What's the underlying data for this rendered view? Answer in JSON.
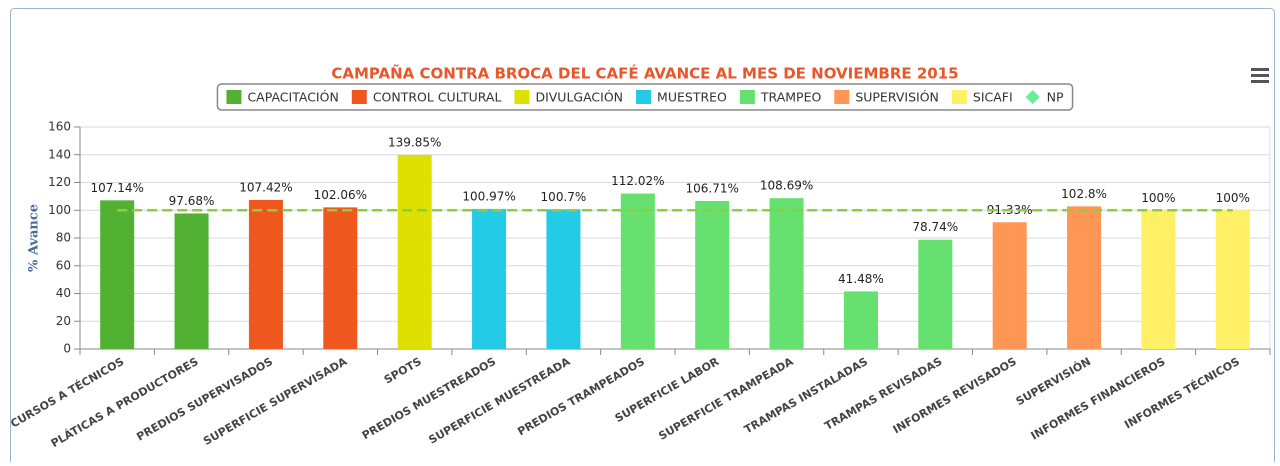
{
  "chart_data": {
    "type": "bar",
    "title": "CAMPAÑA CONTRA BROCA DEL CAFÉ AVANCE AL MES DE NOVIEMBRE 2015",
    "y_label": "% Avance",
    "categories": [
      "CURSOS A TÉCNICOS",
      "PLÁTICAS A PRODUCTORES",
      "PREDIOS SUPERVISADOS",
      "SUPERFICIE SUPERVISADA",
      "SPOTS",
      "PREDIOS MUESTREADOS",
      "SUPERFICIE MUESTREADA",
      "PREDIOS TRAMPEADOS",
      "SUPERFICIE LABOR",
      "SUPERFICIE TRAMPEADA",
      "TRAMPAS INSTALADAS",
      "TRAMPAS REVISADAS",
      "INFORMES REVISADOS",
      "SUPERVISIÓN",
      "INFORMES FINANCIEROS",
      "INFORMES TÉCNICOS"
    ],
    "series": [
      {
        "name": "CAPACITACIÓN",
        "color": "#52b133",
        "values": [
          107.14,
          97.68,
          null,
          null,
          null,
          null,
          null,
          null,
          null,
          null,
          null,
          null,
          null,
          null,
          null,
          null
        ],
        "value_labels": [
          "107.14%",
          "97.68%",
          null,
          null,
          null,
          null,
          null,
          null,
          null,
          null,
          null,
          null,
          null,
          null,
          null,
          null
        ]
      },
      {
        "name": "CONTROL CULTURAL",
        "color": "#ee571e",
        "values": [
          null,
          null,
          107.42,
          102.06,
          null,
          null,
          null,
          null,
          null,
          null,
          null,
          null,
          null,
          null,
          null,
          null
        ],
        "value_labels": [
          null,
          null,
          "107.42%",
          "102.06%",
          null,
          null,
          null,
          null,
          null,
          null,
          null,
          null,
          null,
          null,
          null,
          null
        ]
      },
      {
        "name": "DIVULGACIÓN",
        "color": "#dde000",
        "values": [
          null,
          null,
          null,
          null,
          139.85,
          null,
          null,
          null,
          null,
          null,
          null,
          null,
          null,
          null,
          null,
          null
        ],
        "value_labels": [
          null,
          null,
          null,
          null,
          "139.85%",
          null,
          null,
          null,
          null,
          null,
          null,
          null,
          null,
          null,
          null,
          null
        ]
      },
      {
        "name": "MUESTREO",
        "color": "#23cbe6",
        "values": [
          null,
          null,
          null,
          null,
          null,
          100.97,
          100.7,
          null,
          null,
          null,
          null,
          null,
          null,
          null,
          null,
          null
        ],
        "value_labels": [
          null,
          null,
          null,
          null,
          null,
          "100.97%",
          "100.7%",
          null,
          null,
          null,
          null,
          null,
          null,
          null,
          null,
          null
        ]
      },
      {
        "name": "TRAMPEO",
        "color": "#66e06e",
        "values": [
          null,
          null,
          null,
          null,
          null,
          null,
          null,
          112.02,
          106.71,
          108.69,
          41.48,
          78.74,
          null,
          null,
          null,
          null
        ],
        "value_labels": [
          null,
          null,
          null,
          null,
          null,
          null,
          null,
          "112.02%",
          "106.71%",
          "108.69%",
          "41.48%",
          "78.74%",
          null,
          null,
          null,
          null
        ]
      },
      {
        "name": "SUPERVISIÓN",
        "color": "#ff9655",
        "values": [
          null,
          null,
          null,
          null,
          null,
          null,
          null,
          null,
          null,
          null,
          null,
          null,
          91.33,
          102.8,
          null,
          null
        ],
        "value_labels": [
          null,
          null,
          null,
          null,
          null,
          null,
          null,
          null,
          null,
          null,
          null,
          null,
          "91.33%",
          "102.8%",
          null,
          null
        ]
      },
      {
        "name": "SICAFI",
        "color": "#fff066",
        "values": [
          null,
          null,
          null,
          null,
          null,
          null,
          null,
          null,
          null,
          null,
          null,
          null,
          null,
          null,
          100,
          100
        ],
        "value_labels": [
          null,
          null,
          null,
          null,
          null,
          null,
          null,
          null,
          null,
          null,
          null,
          null,
          null,
          null,
          "100%",
          "100%"
        ]
      },
      {
        "name": "NP",
        "type": "line",
        "color": "#66ee99",
        "values": [
          100,
          100,
          100,
          100,
          100,
          100,
          100,
          100,
          100,
          100,
          100,
          100,
          100,
          100,
          100,
          100
        ]
      }
    ],
    "ylim": [
      0,
      160
    ],
    "yticks": [
      0,
      20,
      40,
      60,
      80,
      100,
      120,
      140,
      160
    ],
    "grid": true,
    "legend": "top"
  }
}
